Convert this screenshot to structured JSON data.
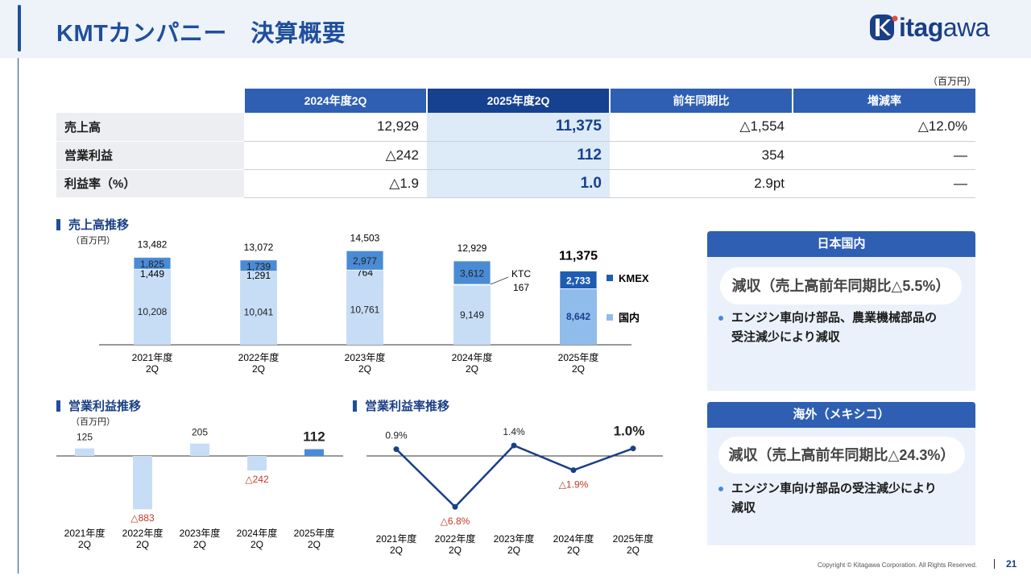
{
  "header": {
    "title": "KMTカンパニー　決算概要",
    "logo": {
      "text_bold": "itag",
      "text_rest": "awa"
    }
  },
  "summary": {
    "unit": "（百万円）",
    "columns": [
      "2024年度2Q",
      "2025年度2Q",
      "前年同期比",
      "増減率"
    ],
    "rows": [
      {
        "label": "売上高",
        "cells": [
          "12,929",
          "11,375",
          "△1,554",
          "△12.0%"
        ]
      },
      {
        "label": "営業利益",
        "cells": [
          "△242",
          "112",
          "354",
          "—"
        ]
      },
      {
        "label": "利益率（%）",
        "cells": [
          "△1.9",
          "1.0",
          "2.9pt",
          "—"
        ]
      }
    ]
  },
  "sales_section": {
    "title": "売上高推移",
    "unit": "（百万円）"
  },
  "op_section": {
    "title": "営業利益推移",
    "unit": "（百万円）"
  },
  "margin_section": {
    "title": "営業利益率推移"
  },
  "domestic_panel": {
    "title": "日本国内",
    "headline": "減収（売上高前年同期比△5.5%）",
    "bullet": [
      "エンジン車向け部品、農業機械部品の",
      "受注減少により減収"
    ]
  },
  "overseas_panel": {
    "title": "海外（メキシコ）",
    "headline": "減収（売上高前年同期比△24.3%）",
    "bullet": [
      "エンジン車向け部品の受注減少により",
      "減収"
    ]
  },
  "footer": {
    "copyright": "Copyright © Kitagawa Corporation. All Rights Reserved.",
    "page": "21"
  },
  "colors": {
    "primary": "#1f4e9c",
    "dark": "#16418f",
    "light_bar": "#c7ddf6",
    "mid_bar": "#4a8bd6",
    "negative": "#c0392b"
  },
  "chart_data": [
    {
      "type": "bar",
      "stacked": true,
      "title": "売上高推移",
      "unit": "（百万円）",
      "categories": [
        "2021年度2Q",
        "2022年度2Q",
        "2023年度2Q",
        "2024年度2Q",
        "2025年度2Q"
      ],
      "series": [
        {
          "name": "国内",
          "values": [
            10208,
            10041,
            10761,
            9149,
            8642
          ]
        },
        {
          "name": "KTC",
          "values": [
            1449,
            1291,
            764,
            167,
            null
          ]
        },
        {
          "name": "KMEX",
          "values": [
            1825,
            1739,
            2977,
            3612,
            2733
          ]
        }
      ],
      "totals": [
        "13,482",
        "13,072",
        "14,503",
        "12,929",
        "11,375"
      ],
      "value_labels": {
        "国内": [
          "10,208",
          "10,041",
          "10,761",
          "9,149",
          "8,642"
        ],
        "KTC": [
          "1,449",
          "1,291",
          "764",
          "KTC\n167",
          ""
        ],
        "KMEX": [
          "1,825",
          "1,739",
          "2,977",
          "3,612",
          "2,733"
        ]
      },
      "legend": [
        "KMEX",
        "国内"
      ]
    },
    {
      "type": "bar",
      "title": "営業利益推移",
      "unit": "（百万円）",
      "categories": [
        "2021年度2Q",
        "2022年度2Q",
        "2023年度2Q",
        "2024年度2Q",
        "2025年度2Q"
      ],
      "values": [
        125,
        -883,
        205,
        -242,
        112
      ],
      "value_labels": [
        "125",
        "△883",
        "205",
        "△242",
        "112"
      ]
    },
    {
      "type": "line",
      "title": "営業利益率推移",
      "categories": [
        "2021年度2Q",
        "2022年度2Q",
        "2023年度2Q",
        "2024年度2Q",
        "2025年度2Q"
      ],
      "values": [
        0.9,
        -6.8,
        1.4,
        -1.9,
        1.0
      ],
      "value_labels": [
        "0.9%",
        "△6.8%",
        "1.4%",
        "△1.9%",
        "1.0%"
      ],
      "unit": "%"
    }
  ]
}
